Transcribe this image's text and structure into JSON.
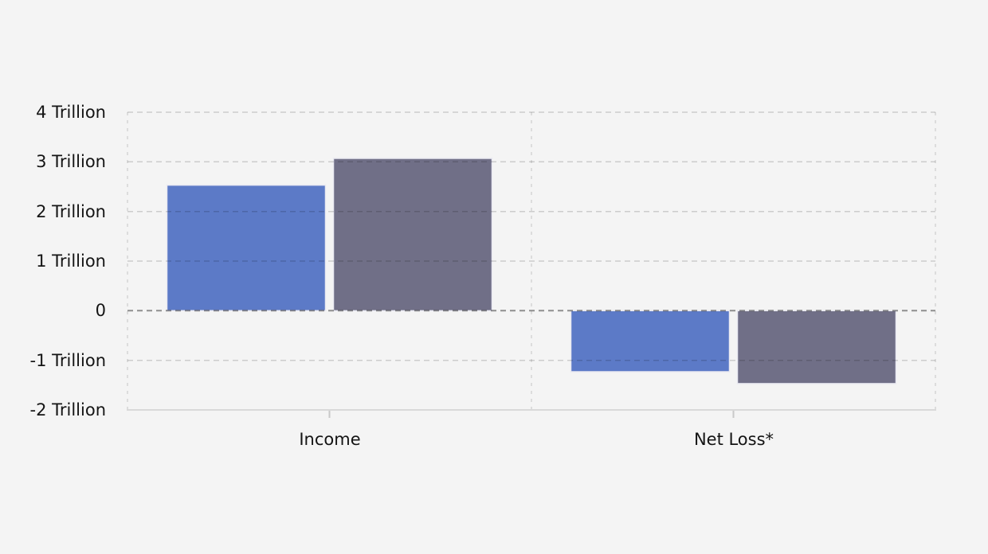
{
  "chart_data": {
    "type": "bar",
    "title": "",
    "legend": "none",
    "units": "Trillion",
    "categories": [
      "Income",
      "Net Loss*"
    ],
    "series": [
      {
        "name": "series-1-blue",
        "color": "#5c7ac7",
        "values": [
          2.53,
          -1.23
        ]
      },
      {
        "name": "series-2-gray",
        "color": "#706f87",
        "values": [
          3.07,
          -1.47
        ]
      }
    ],
    "yticks": [
      {
        "value": 4,
        "label": "4 Trillion"
      },
      {
        "value": 3,
        "label": "3 Trillion"
      },
      {
        "value": 2,
        "label": "2 Trillion"
      },
      {
        "value": 1,
        "label": "1 Trillion"
      },
      {
        "value": 0,
        "label": "0"
      },
      {
        "value": -1,
        "label": "-1 Trillion"
      },
      {
        "value": -2,
        "label": "-2 Trillion"
      }
    ],
    "ylim": [
      -2,
      4
    ],
    "grid": {
      "horizontal": "dashed",
      "vertical": "dashed separators at plot edges and between categories",
      "zero_line_emphasized": true,
      "bottom_axis": "solid with small tick below each category center"
    },
    "colors": {
      "background": "#f4f4f4",
      "text": "#141414",
      "grid": "rgba(0,0,0,0.16)",
      "grid_vertical": "rgba(0,0,0,0.13)",
      "zero_line": "rgba(0,0,0,0.42)",
      "axis_line": "#d9d9d9",
      "tick": "#c9c9c9",
      "bar_stroke": "#e9e9f1"
    }
  }
}
